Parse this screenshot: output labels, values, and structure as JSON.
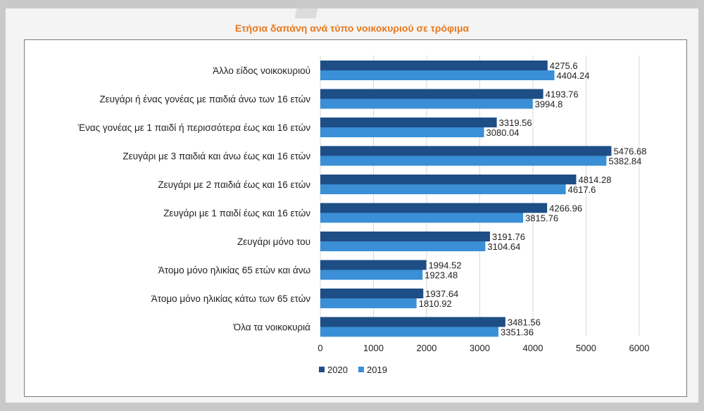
{
  "chart_data": {
    "type": "bar",
    "orientation": "horizontal",
    "title": "Ετήσια δαπάνη ανά τύπο νοικοκυριού σε τρόφιμα",
    "categories": [
      "Άλλο είδος  νοικοκυριού",
      "Ζευγάρι ή ένας γονέας με παιδιά άνω των 16 ετών",
      "Ένας γονέας με 1 παιδί ή περισσότερα έως και 16 ετών",
      "Ζευγάρι με 3 παιδιά και άνω έως και 16 ετών",
      "Ζευγάρι με 2 παιδιά έως και 16 ετών",
      "Ζευγάρι με 1 παιδί έως και 16 ετών",
      "Ζευγάρι μόνο του",
      "Άτομο μόνο ηλικίας 65 ετών και άνω",
      "Άτομο μόνο ηλικίας κάτω των 65 ετών",
      "Όλα τα νοικοκυριά"
    ],
    "series": [
      {
        "name": "2020",
        "color": "#1e4e86",
        "values": [
          4275.6,
          4193.76,
          3319.56,
          5476.68,
          4814.28,
          4266.96,
          3191.76,
          1994.52,
          1937.64,
          3481.56
        ],
        "labels": [
          "4275.6",
          "4193.76",
          "3319.56",
          "5476.68",
          "4814.28",
          "4266.96",
          "3191.76",
          "1994.52",
          "1937.64",
          "3481.56"
        ]
      },
      {
        "name": "2019",
        "color": "#3a8fd6",
        "values": [
          4404.24,
          3994.8,
          3080.04,
          5382.84,
          4617.6,
          3815.76,
          3104.64,
          1923.48,
          1810.92,
          3351.36
        ],
        "labels": [
          "4404.24",
          "3994.8",
          "3080.04",
          "5382.84",
          "4617.6",
          "3815.76",
          "3104.64",
          "1923.48",
          "1810.92",
          "3351.36"
        ]
      }
    ],
    "xlim": [
      0,
      6000
    ],
    "xticks": [
      "0",
      "1000",
      "2000",
      "3000",
      "4000",
      "5000",
      "6000"
    ],
    "grid": true,
    "legend": "bottom-center"
  }
}
